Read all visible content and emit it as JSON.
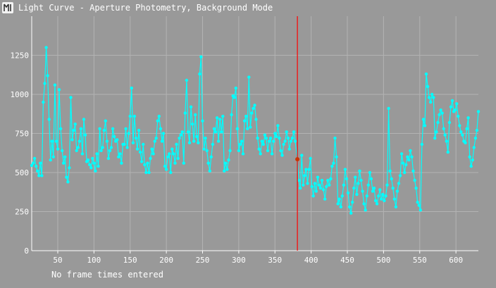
{
  "window": {
    "title": "Light Curve - Aperture Photometry, Background Mode",
    "icon": "app-logo-icon"
  },
  "footer": {
    "note": "No frame times entered"
  },
  "colors": {
    "background": "#999999",
    "grid": "#b3b3b3",
    "series": "#00ffff",
    "cursor": "#ff0000",
    "cursor_point": "#cc3300",
    "text": "#ffffff"
  },
  "chart_data": {
    "type": "line",
    "title": "",
    "xlabel": "",
    "ylabel": "",
    "xlim": [
      14,
      631
    ],
    "ylim": [
      0,
      1500
    ],
    "x_ticks": [
      50,
      100,
      150,
      200,
      250,
      300,
      350,
      400,
      450,
      500,
      550,
      600
    ],
    "y_ticks": [
      0,
      250,
      500,
      750,
      1000,
      1250
    ],
    "grid": true,
    "legend": "none",
    "cursor": {
      "x": 381,
      "y": 585
    },
    "series": [
      {
        "values": [
          [
            14,
            545
          ],
          [
            16,
            560
          ],
          [
            18,
            590
          ],
          [
            20,
            540
          ],
          [
            22,
            510
          ],
          [
            24,
            480
          ],
          [
            26,
            560
          ],
          [
            28,
            480
          ],
          [
            30,
            950
          ],
          [
            32,
            1070
          ],
          [
            34,
            1300
          ],
          [
            36,
            1120
          ],
          [
            38,
            840
          ],
          [
            40,
            580
          ],
          [
            42,
            700
          ],
          [
            44,
            600
          ],
          [
            46,
            1060
          ],
          [
            48,
            700
          ],
          [
            50,
            650
          ],
          [
            52,
            1030
          ],
          [
            54,
            780
          ],
          [
            56,
            640
          ],
          [
            58,
            560
          ],
          [
            60,
            600
          ],
          [
            62,
            470
          ],
          [
            64,
            440
          ],
          [
            66,
            530
          ],
          [
            68,
            980
          ],
          [
            70,
            710
          ],
          [
            72,
            770
          ],
          [
            74,
            810
          ],
          [
            76,
            640
          ],
          [
            78,
            660
          ],
          [
            80,
            700
          ],
          [
            82,
            780
          ],
          [
            84,
            620
          ],
          [
            86,
            840
          ],
          [
            88,
            740
          ],
          [
            90,
            570
          ],
          [
            92,
            580
          ],
          [
            94,
            550
          ],
          [
            96,
            530
          ],
          [
            98,
            590
          ],
          [
            100,
            560
          ],
          [
            102,
            510
          ],
          [
            104,
            620
          ],
          [
            106,
            540
          ],
          [
            108,
            780
          ],
          [
            110,
            640
          ],
          [
            112,
            660
          ],
          [
            114,
            770
          ],
          [
            116,
            830
          ],
          [
            118,
            700
          ],
          [
            120,
            590
          ],
          [
            122,
            640
          ],
          [
            124,
            660
          ],
          [
            126,
            780
          ],
          [
            128,
            730
          ],
          [
            130,
            700
          ],
          [
            132,
            710
          ],
          [
            134,
            600
          ],
          [
            136,
            620
          ],
          [
            138,
            560
          ],
          [
            140,
            680
          ],
          [
            142,
            680
          ],
          [
            144,
            780
          ],
          [
            146,
            660
          ],
          [
            148,
            750
          ],
          [
            150,
            860
          ],
          [
            152,
            1040
          ],
          [
            154,
            690
          ],
          [
            156,
            860
          ],
          [
            158,
            720
          ],
          [
            160,
            650
          ],
          [
            162,
            770
          ],
          [
            164,
            630
          ],
          [
            166,
            570
          ],
          [
            168,
            680
          ],
          [
            170,
            550
          ],
          [
            172,
            500
          ],
          [
            174,
            560
          ],
          [
            176,
            500
          ],
          [
            178,
            590
          ],
          [
            180,
            650
          ],
          [
            182,
            620
          ],
          [
            184,
            700
          ],
          [
            186,
            720
          ],
          [
            188,
            830
          ],
          [
            190,
            860
          ],
          [
            192,
            780
          ],
          [
            194,
            700
          ],
          [
            196,
            750
          ],
          [
            198,
            540
          ],
          [
            200,
            520
          ],
          [
            202,
            600
          ],
          [
            204,
            620
          ],
          [
            206,
            500
          ],
          [
            208,
            650
          ],
          [
            210,
            620
          ],
          [
            212,
            560
          ],
          [
            214,
            680
          ],
          [
            216,
            590
          ],
          [
            218,
            720
          ],
          [
            220,
            740
          ],
          [
            222,
            760
          ],
          [
            224,
            560
          ],
          [
            226,
            880
          ],
          [
            228,
            1090
          ],
          [
            230,
            760
          ],
          [
            232,
            690
          ],
          [
            234,
            920
          ],
          [
            236,
            810
          ],
          [
            238,
            700
          ],
          [
            240,
            870
          ],
          [
            242,
            730
          ],
          [
            244,
            690
          ],
          [
            246,
            1130
          ],
          [
            248,
            1240
          ],
          [
            250,
            830
          ],
          [
            252,
            650
          ],
          [
            254,
            720
          ],
          [
            256,
            640
          ],
          [
            258,
            560
          ],
          [
            260,
            510
          ],
          [
            262,
            600
          ],
          [
            264,
            680
          ],
          [
            266,
            780
          ],
          [
            268,
            760
          ],
          [
            270,
            850
          ],
          [
            272,
            700
          ],
          [
            274,
            840
          ],
          [
            276,
            760
          ],
          [
            278,
            860
          ],
          [
            280,
            510
          ],
          [
            282,
            560
          ],
          [
            284,
            520
          ],
          [
            286,
            580
          ],
          [
            288,
            640
          ],
          [
            290,
            870
          ],
          [
            292,
            990
          ],
          [
            294,
            980
          ],
          [
            296,
            1040
          ],
          [
            298,
            780
          ],
          [
            300,
            640
          ],
          [
            302,
            680
          ],
          [
            304,
            700
          ],
          [
            306,
            620
          ],
          [
            308,
            830
          ],
          [
            310,
            860
          ],
          [
            312,
            780
          ],
          [
            314,
            1110
          ],
          [
            316,
            790
          ],
          [
            318,
            880
          ],
          [
            320,
            910
          ],
          [
            322,
            930
          ],
          [
            324,
            840
          ],
          [
            326,
            720
          ],
          [
            328,
            650
          ],
          [
            330,
            620
          ],
          [
            332,
            700
          ],
          [
            334,
            680
          ],
          [
            336,
            740
          ],
          [
            338,
            720
          ],
          [
            340,
            640
          ],
          [
            342,
            700
          ],
          [
            344,
            720
          ],
          [
            346,
            620
          ],
          [
            348,
            700
          ],
          [
            350,
            750
          ],
          [
            352,
            730
          ],
          [
            354,
            800
          ],
          [
            356,
            720
          ],
          [
            358,
            640
          ],
          [
            360,
            610
          ],
          [
            362,
            680
          ],
          [
            364,
            700
          ],
          [
            366,
            760
          ],
          [
            368,
            720
          ],
          [
            370,
            650
          ],
          [
            372,
            700
          ],
          [
            374,
            720
          ],
          [
            376,
            760
          ],
          [
            378,
            700
          ],
          [
            381,
            585
          ],
          [
            383,
            450
          ],
          [
            385,
            400
          ],
          [
            387,
            610
          ],
          [
            389,
            420
          ],
          [
            391,
            480
          ],
          [
            393,
            520
          ],
          [
            395,
            430
          ],
          [
            397,
            520
          ],
          [
            399,
            590
          ],
          [
            401,
            410
          ],
          [
            403,
            350
          ],
          [
            405,
            430
          ],
          [
            407,
            380
          ],
          [
            409,
            470
          ],
          [
            411,
            420
          ],
          [
            413,
            400
          ],
          [
            415,
            450
          ],
          [
            417,
            390
          ],
          [
            419,
            330
          ],
          [
            421,
            410
          ],
          [
            423,
            450
          ],
          [
            425,
            420
          ],
          [
            427,
            460
          ],
          [
            429,
            540
          ],
          [
            431,
            560
          ],
          [
            433,
            720
          ],
          [
            435,
            600
          ],
          [
            437,
            300
          ],
          [
            439,
            330
          ],
          [
            441,
            280
          ],
          [
            443,
            350
          ],
          [
            445,
            420
          ],
          [
            447,
            520
          ],
          [
            449,
            460
          ],
          [
            451,
            370
          ],
          [
            453,
            280
          ],
          [
            455,
            240
          ],
          [
            457,
            310
          ],
          [
            459,
            400
          ],
          [
            461,
            470
          ],
          [
            463,
            360
          ],
          [
            465,
            430
          ],
          [
            467,
            510
          ],
          [
            469,
            450
          ],
          [
            471,
            380
          ],
          [
            473,
            300
          ],
          [
            475,
            260
          ],
          [
            477,
            350
          ],
          [
            479,
            420
          ],
          [
            481,
            500
          ],
          [
            483,
            460
          ],
          [
            485,
            380
          ],
          [
            487,
            400
          ],
          [
            489,
            320
          ],
          [
            491,
            300
          ],
          [
            493,
            350
          ],
          [
            495,
            390
          ],
          [
            497,
            330
          ],
          [
            499,
            360
          ],
          [
            501,
            320
          ],
          [
            503,
            350
          ],
          [
            505,
            420
          ],
          [
            507,
            910
          ],
          [
            509,
            510
          ],
          [
            511,
            460
          ],
          [
            513,
            400
          ],
          [
            515,
            330
          ],
          [
            517,
            280
          ],
          [
            519,
            380
          ],
          [
            521,
            430
          ],
          [
            523,
            480
          ],
          [
            525,
            620
          ],
          [
            527,
            560
          ],
          [
            529,
            500
          ],
          [
            531,
            550
          ],
          [
            533,
            600
          ],
          [
            535,
            580
          ],
          [
            537,
            640
          ],
          [
            539,
            600
          ],
          [
            541,
            510
          ],
          [
            543,
            450
          ],
          [
            545,
            400
          ],
          [
            547,
            310
          ],
          [
            549,
            290
          ],
          [
            551,
            260
          ],
          [
            553,
            680
          ],
          [
            555,
            840
          ],
          [
            557,
            800
          ],
          [
            559,
            1130
          ],
          [
            561,
            1050
          ],
          [
            563,
            980
          ],
          [
            565,
            950
          ],
          [
            567,
            1000
          ],
          [
            569,
            980
          ],
          [
            571,
            720
          ],
          [
            573,
            760
          ],
          [
            575,
            820
          ],
          [
            577,
            870
          ],
          [
            579,
            900
          ],
          [
            581,
            880
          ],
          [
            583,
            780
          ],
          [
            585,
            740
          ],
          [
            587,
            700
          ],
          [
            589,
            630
          ],
          [
            591,
            820
          ],
          [
            593,
            920
          ],
          [
            595,
            960
          ],
          [
            597,
            890
          ],
          [
            599,
            900
          ],
          [
            601,
            940
          ],
          [
            603,
            860
          ],
          [
            605,
            800
          ],
          [
            607,
            760
          ],
          [
            609,
            740
          ],
          [
            611,
            700
          ],
          [
            613,
            690
          ],
          [
            615,
            780
          ],
          [
            617,
            850
          ],
          [
            619,
            600
          ],
          [
            621,
            540
          ],
          [
            623,
            580
          ],
          [
            625,
            660
          ],
          [
            627,
            720
          ],
          [
            629,
            770
          ],
          [
            631,
            890
          ]
        ]
      }
    ]
  }
}
